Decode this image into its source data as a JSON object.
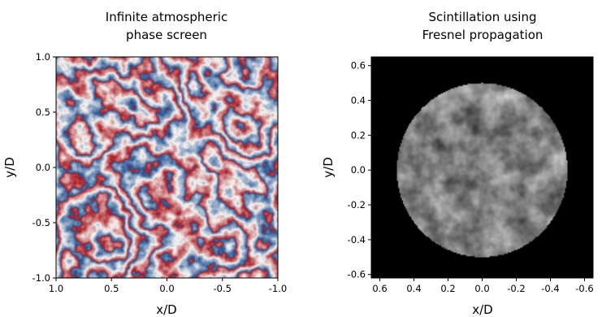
{
  "chart_data": [
    {
      "type": "heatmap",
      "title_lines": [
        "Infinite atmospheric",
        "phase screen"
      ],
      "xlabel": "x/D",
      "ylabel": "y/D",
      "xlim": [
        1.0,
        -1.0
      ],
      "ylim": [
        -1.0,
        1.0
      ],
      "x_ticks": [
        "1.0",
        "0.5",
        "0.0",
        "-0.5",
        "-1.0"
      ],
      "y_ticks": [
        "1.0",
        "0.5",
        "0.0",
        "-0.5",
        "-1.0"
      ],
      "colormap": "diverging wrapped phase (blue-white-red)",
      "colors": {
        "low": "#1d4e8f",
        "mid": "#f7f6f4",
        "high": "#a8141c"
      }
    },
    {
      "type": "heatmap",
      "title_lines": [
        "Scintillation using",
        "Fresnel propagation"
      ],
      "xlabel": "x/D",
      "ylabel": "y/D",
      "xlim": [
        0.65,
        -0.65
      ],
      "ylim": [
        -0.62,
        0.65
      ],
      "x_ticks": [
        "0.6",
        "0.4",
        "0.2",
        "0.0",
        "-0.2",
        "-0.4",
        "-0.6"
      ],
      "y_ticks": [
        "0.6",
        "0.4",
        "0.2",
        "0.0",
        "-0.2",
        "-0.4",
        "-0.6"
      ],
      "aperture_radius": 0.5,
      "colormap": "grayscale intensity",
      "colors": {
        "background": "#000000"
      }
    }
  ]
}
